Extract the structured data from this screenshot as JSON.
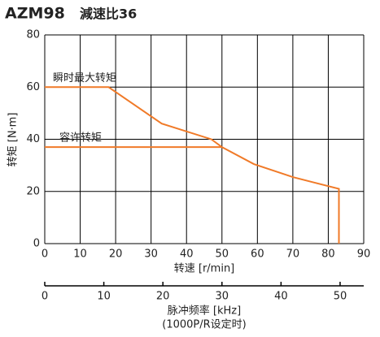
{
  "chart_data": {
    "type": "line",
    "title": "AZM98",
    "subtitle": "減速比36",
    "xlabel": "转速 [r/min]",
    "ylabel": "转矩 [N·m]",
    "xlim": [
      0,
      90
    ],
    "xticks": [
      0,
      10,
      20,
      30,
      40,
      50,
      60,
      70,
      80,
      90
    ],
    "ylim": [
      0,
      80
    ],
    "yticks": [
      0,
      20,
      40,
      60,
      80
    ],
    "grid": true,
    "x2label": [
      "脉冲频率 [kHz]",
      "(1000P/R设定时)"
    ],
    "x2lim": [
      0,
      54
    ],
    "x2ticks": [
      0,
      10,
      20,
      30,
      40,
      50
    ],
    "series": [
      {
        "name": "瞬时最大转矩",
        "color": "#f07a28",
        "x": [
          0,
          18,
          33,
          47,
          50,
          59,
          70,
          83,
          83
        ],
        "values": [
          60,
          60,
          46,
          40,
          37,
          30.5,
          25.5,
          21,
          0
        ]
      },
      {
        "name": "容许转矩",
        "color": "#f07a28",
        "x": [
          0,
          50
        ],
        "values": [
          37,
          37
        ]
      }
    ]
  }
}
